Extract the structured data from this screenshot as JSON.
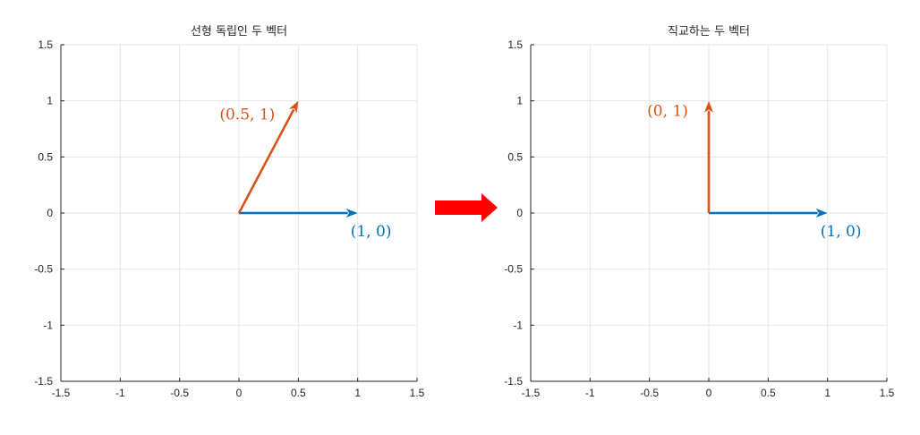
{
  "colors": {
    "vector_blue": "#0072BD",
    "vector_orange": "#D95319",
    "transition_arrow": "#FF0000",
    "grid": "#E6E6E6",
    "axis": "#262626"
  },
  "transition_icon": "right-arrow-icon",
  "chart_data": [
    {
      "type": "vector-plot",
      "title": "선형 독립인 두 벡터",
      "xlabel": "",
      "ylabel": "",
      "xlim": [
        -1.5,
        1.5
      ],
      "ylim": [
        -1.5,
        1.5
      ],
      "x_ticks": [
        "-1.5",
        "-1",
        "-0.5",
        "0",
        "0.5",
        "1",
        "1.5"
      ],
      "y_ticks": [
        "-1.5",
        "-1",
        "-0.5",
        "0",
        "0.5",
        "1",
        "1.5"
      ],
      "grid": true,
      "vectors": [
        {
          "from": [
            0,
            0
          ],
          "to": [
            1,
            0
          ],
          "label": "(1, 0)",
          "color": "#0072BD"
        },
        {
          "from": [
            0,
            0
          ],
          "to": [
            0.5,
            1
          ],
          "label": "(0.5, 1)",
          "color": "#D95319"
        }
      ]
    },
    {
      "type": "vector-plot",
      "title": "직교하는 두 벡터",
      "xlabel": "",
      "ylabel": "",
      "xlim": [
        -1.5,
        1.5
      ],
      "ylim": [
        -1.5,
        1.5
      ],
      "x_ticks": [
        "-1.5",
        "-1",
        "-0.5",
        "0",
        "0.5",
        "1",
        "1.5"
      ],
      "y_ticks": [
        "-1.5",
        "-1",
        "-0.5",
        "0",
        "0.5",
        "1",
        "1.5"
      ],
      "grid": true,
      "vectors": [
        {
          "from": [
            0,
            0
          ],
          "to": [
            1,
            0
          ],
          "label": "(1, 0)",
          "color": "#0072BD"
        },
        {
          "from": [
            0,
            0
          ],
          "to": [
            0,
            1
          ],
          "label": "(0, 1)",
          "color": "#D95319"
        }
      ]
    }
  ]
}
